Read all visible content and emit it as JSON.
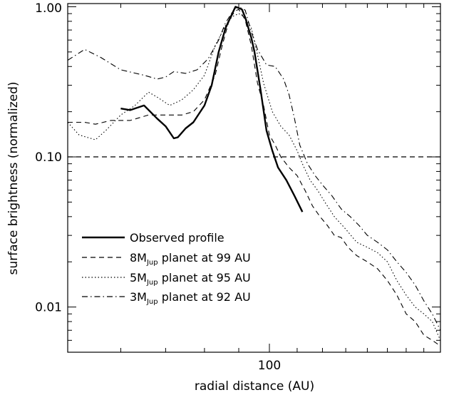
{
  "chart_data": {
    "type": "line",
    "xlabel": "radial distance (AU)",
    "ylabel": "surface brightness (normalized)",
    "x_scale": "log",
    "y_scale": "log",
    "xlim": [
      50,
      180
    ],
    "ylim": [
      0.005,
      1.05
    ],
    "grid": false,
    "legend_position": "bottom-left",
    "x_tick_labels": [
      {
        "value": 100,
        "label": "100"
      }
    ],
    "y_tick_labels": [
      {
        "value": 0.01,
        "label": "0.01"
      },
      {
        "value": 0.1,
        "label": "0.10"
      },
      {
        "value": 1.0,
        "label": "1.00"
      }
    ],
    "reference_line": {
      "y": 0.1,
      "style": "dashed"
    },
    "series": [
      {
        "name": "Observed profile",
        "style": "solid",
        "points": [
          [
            60,
            0.21
          ],
          [
            62,
            0.205
          ],
          [
            65,
            0.22
          ],
          [
            68,
            0.18
          ],
          [
            70,
            0.16
          ],
          [
            72,
            0.133
          ],
          [
            73,
            0.135
          ],
          [
            75,
            0.155
          ],
          [
            77,
            0.17
          ],
          [
            80,
            0.22
          ],
          [
            82,
            0.3
          ],
          [
            84,
            0.5
          ],
          [
            86,
            0.72
          ],
          [
            88,
            0.9
          ],
          [
            89,
            1.0
          ],
          [
            90,
            0.98
          ],
          [
            91,
            0.96
          ],
          [
            92,
            0.85
          ],
          [
            94,
            0.62
          ],
          [
            95,
            0.5
          ],
          [
            97,
            0.28
          ],
          [
            99,
            0.15
          ],
          [
            101,
            0.11
          ],
          [
            103,
            0.085
          ],
          [
            106,
            0.07
          ],
          [
            109,
            0.055
          ],
          [
            112,
            0.043
          ]
        ]
      },
      {
        "name": "8M<sub>Jup</sub> planet at 99 AU",
        "style": "dashed",
        "points": [
          [
            50,
            0.17
          ],
          [
            53,
            0.17
          ],
          [
            55,
            0.165
          ],
          [
            58,
            0.175
          ],
          [
            62,
            0.175
          ],
          [
            66,
            0.19
          ],
          [
            70,
            0.19
          ],
          [
            74,
            0.19
          ],
          [
            77,
            0.2
          ],
          [
            80,
            0.24
          ],
          [
            83,
            0.35
          ],
          [
            85,
            0.55
          ],
          [
            87,
            0.8
          ],
          [
            88,
            0.88
          ],
          [
            89,
            0.94
          ],
          [
            90,
            0.96
          ],
          [
            92,
            0.82
          ],
          [
            94,
            0.55
          ],
          [
            96,
            0.31
          ],
          [
            98,
            0.22
          ],
          [
            100,
            0.14
          ],
          [
            102,
            0.12
          ],
          [
            104,
            0.1
          ],
          [
            107,
            0.085
          ],
          [
            110,
            0.075
          ],
          [
            113,
            0.06
          ],
          [
            116,
            0.047
          ],
          [
            119,
            0.04
          ],
          [
            122,
            0.035
          ],
          [
            125,
            0.03
          ],
          [
            128,
            0.029
          ],
          [
            131,
            0.025
          ],
          [
            135,
            0.022
          ],
          [
            140,
            0.02
          ],
          [
            145,
            0.018
          ],
          [
            150,
            0.015
          ],
          [
            155,
            0.012
          ],
          [
            160,
            0.009
          ],
          [
            165,
            0.008
          ],
          [
            170,
            0.0065
          ],
          [
            175,
            0.006
          ],
          [
            180,
            0.0055
          ]
        ]
      },
      {
        "name": "5M<sub>Jup</sub> planet at 95 AU",
        "style": "dotted",
        "points": [
          [
            50,
            0.17
          ],
          [
            52,
            0.14
          ],
          [
            55,
            0.13
          ],
          [
            57,
            0.15
          ],
          [
            60,
            0.19
          ],
          [
            63,
            0.22
          ],
          [
            66,
            0.27
          ],
          [
            68,
            0.25
          ],
          [
            71,
            0.22
          ],
          [
            74,
            0.24
          ],
          [
            77,
            0.28
          ],
          [
            80,
            0.35
          ],
          [
            83,
            0.55
          ],
          [
            86,
            0.75
          ],
          [
            88,
            0.86
          ],
          [
            90,
            0.9
          ],
          [
            92,
            0.85
          ],
          [
            94,
            0.72
          ],
          [
            96,
            0.48
          ],
          [
            98,
            0.31
          ],
          [
            101,
            0.2
          ],
          [
            104,
            0.16
          ],
          [
            107,
            0.14
          ],
          [
            110,
            0.11
          ],
          [
            112,
            0.09
          ],
          [
            115,
            0.07
          ],
          [
            118,
            0.06
          ],
          [
            121,
            0.05
          ],
          [
            125,
            0.04
          ],
          [
            130,
            0.033
          ],
          [
            135,
            0.027
          ],
          [
            140,
            0.025
          ],
          [
            145,
            0.023
          ],
          [
            150,
            0.02
          ],
          [
            155,
            0.015
          ],
          [
            160,
            0.012
          ],
          [
            165,
            0.01
          ],
          [
            170,
            0.009
          ],
          [
            175,
            0.008
          ],
          [
            180,
            0.006
          ]
        ]
      },
      {
        "name": "3M<sub>Jup</sub> planet at 92 AU",
        "style": "dashdot",
        "points": [
          [
            50,
            0.44
          ],
          [
            53,
            0.52
          ],
          [
            56,
            0.46
          ],
          [
            60,
            0.38
          ],
          [
            65,
            0.35
          ],
          [
            68,
            0.33
          ],
          [
            70,
            0.34
          ],
          [
            72,
            0.37
          ],
          [
            75,
            0.36
          ],
          [
            78,
            0.38
          ],
          [
            81,
            0.45
          ],
          [
            84,
            0.6
          ],
          [
            86,
            0.78
          ],
          [
            88,
            0.92
          ],
          [
            89,
            0.98
          ],
          [
            90,
            1.0
          ],
          [
            92,
            0.95
          ],
          [
            94,
            0.68
          ],
          [
            96,
            0.52
          ],
          [
            99,
            0.41
          ],
          [
            102,
            0.4
          ],
          [
            105,
            0.33
          ],
          [
            107,
            0.26
          ],
          [
            109,
            0.18
          ],
          [
            111,
            0.12
          ],
          [
            114,
            0.09
          ],
          [
            117,
            0.075
          ],
          [
            120,
            0.065
          ],
          [
            124,
            0.055
          ],
          [
            128,
            0.045
          ],
          [
            132,
            0.04
          ],
          [
            136,
            0.035
          ],
          [
            140,
            0.03
          ],
          [
            145,
            0.027
          ],
          [
            150,
            0.024
          ],
          [
            155,
            0.02
          ],
          [
            160,
            0.017
          ],
          [
            165,
            0.014
          ],
          [
            170,
            0.011
          ],
          [
            175,
            0.009
          ],
          [
            180,
            0.007
          ]
        ]
      }
    ]
  }
}
